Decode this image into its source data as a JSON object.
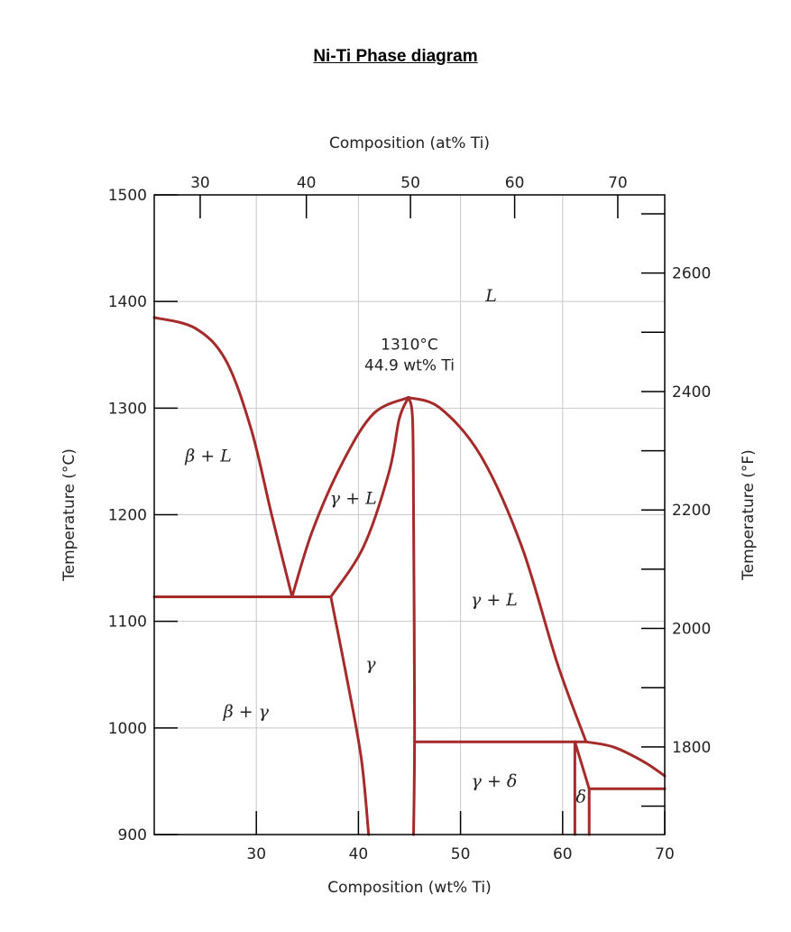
{
  "title": "Ni-Ti Phase diagram",
  "chart_data": {
    "type": "line",
    "title": "Ni-Ti Phase diagram",
    "xlabel": "Composition (wt% Ti)",
    "x2label": "Composition (at% Ti)",
    "ylabel": "Temperature (°C)",
    "y2label": "Temperature (°F)",
    "xlim": [
      20,
      70
    ],
    "ylim": [
      900,
      1500
    ],
    "grid": true,
    "x_ticks": [
      30,
      40,
      50,
      60,
      70
    ],
    "y_ticks": [
      900,
      1000,
      1100,
      1200,
      1300,
      1400,
      1500
    ],
    "top_ticks": [
      {
        "label": "30",
        "at_wt": 24.5
      },
      {
        "label": "40",
        "at_wt": 34.9
      },
      {
        "label": "50",
        "at_wt": 45.1
      },
      {
        "label": "60",
        "at_wt": 55.3
      },
      {
        "label": "70",
        "at_wt": 65.4
      }
    ],
    "right_major_ticks": [
      1800,
      2000,
      2200,
      2400,
      2600
    ],
    "right_minor_ticks": [
      1700,
      1900,
      2100,
      2300,
      2500,
      2700
    ],
    "line_color": "#a52a2a",
    "grid_color": "#c8c8c8",
    "series": [
      {
        "id": "liquidus-beta",
        "points": [
          [
            20,
            1385
          ],
          [
            24,
            1375
          ],
          [
            27,
            1345
          ],
          [
            29.5,
            1280
          ],
          [
            31.5,
            1200
          ],
          [
            33.5,
            1123
          ]
        ]
      },
      {
        "id": "liquidus-gamma-left",
        "points": [
          [
            33.5,
            1123
          ],
          [
            35.5,
            1185
          ],
          [
            38.5,
            1250
          ],
          [
            41.5,
            1295
          ],
          [
            44.9,
            1310
          ]
        ]
      },
      {
        "id": "solidus-gamma-left",
        "points": [
          [
            37.3,
            1123
          ],
          [
            40.5,
            1170
          ],
          [
            43,
            1240
          ],
          [
            44,
            1290
          ],
          [
            44.9,
            1310
          ]
        ]
      },
      {
        "id": "solidus-gamma-right",
        "points": [
          [
            44.9,
            1310
          ],
          [
            45.3,
            1290
          ],
          [
            45.4,
            1200
          ],
          [
            45.5,
            1000
          ],
          [
            45.4,
            900
          ]
        ]
      },
      {
        "id": "liquidus-gamma-right",
        "points": [
          [
            44.9,
            1310
          ],
          [
            48,
            1300
          ],
          [
            52,
            1255
          ],
          [
            56,
            1170
          ],
          [
            59.5,
            1060
          ],
          [
            62.3,
            987
          ]
        ]
      },
      {
        "id": "eutectic-beta-gamma",
        "points": [
          [
            20,
            1123
          ],
          [
            37.3,
            1123
          ]
        ]
      },
      {
        "id": "solvus-gamma-left",
        "points": [
          [
            37.3,
            1123
          ],
          [
            39,
            1040
          ],
          [
            40.3,
            970
          ],
          [
            41,
            900
          ]
        ]
      },
      {
        "id": "eutectic-gamma-delta",
        "points": [
          [
            45.5,
            987
          ],
          [
            62.3,
            987
          ]
        ]
      },
      {
        "id": "delta-left",
        "points": [
          [
            61.2,
            987
          ],
          [
            61.2,
            900
          ]
        ]
      },
      {
        "id": "delta-diag",
        "points": [
          [
            61.2,
            987
          ],
          [
            62.6,
            943
          ]
        ]
      },
      {
        "id": "delta-right",
        "points": [
          [
            62.6,
            943
          ],
          [
            62.6,
            900
          ]
        ]
      },
      {
        "id": "peritectic",
        "points": [
          [
            62.6,
            943
          ],
          [
            70,
            943
          ]
        ]
      },
      {
        "id": "liquidus-delta",
        "points": [
          [
            62.3,
            987
          ],
          [
            65,
            982
          ],
          [
            68,
            968
          ],
          [
            70,
            955
          ]
        ]
      }
    ],
    "regions": [
      {
        "label": "L",
        "x": 53,
        "y": 1400
      },
      {
        "label": "β + L",
        "x": 25.3,
        "y": 1250
      },
      {
        "label": "γ + L",
        "x": 39.5,
        "y": 1210
      },
      {
        "label": "γ + L",
        "x": 53.3,
        "y": 1115
      },
      {
        "label": "γ",
        "x": 41.2,
        "y": 1055
      },
      {
        "label": "β + γ",
        "x": 29,
        "y": 1010
      },
      {
        "label": "γ + δ",
        "x": 53.3,
        "y": 945
      },
      {
        "label": "δ",
        "x": 61.8,
        "y": 930
      }
    ],
    "annotation": {
      "lines": [
        "1310°C",
        "44.9 wt% Ti"
      ],
      "x": 45,
      "y": 1355
    }
  }
}
